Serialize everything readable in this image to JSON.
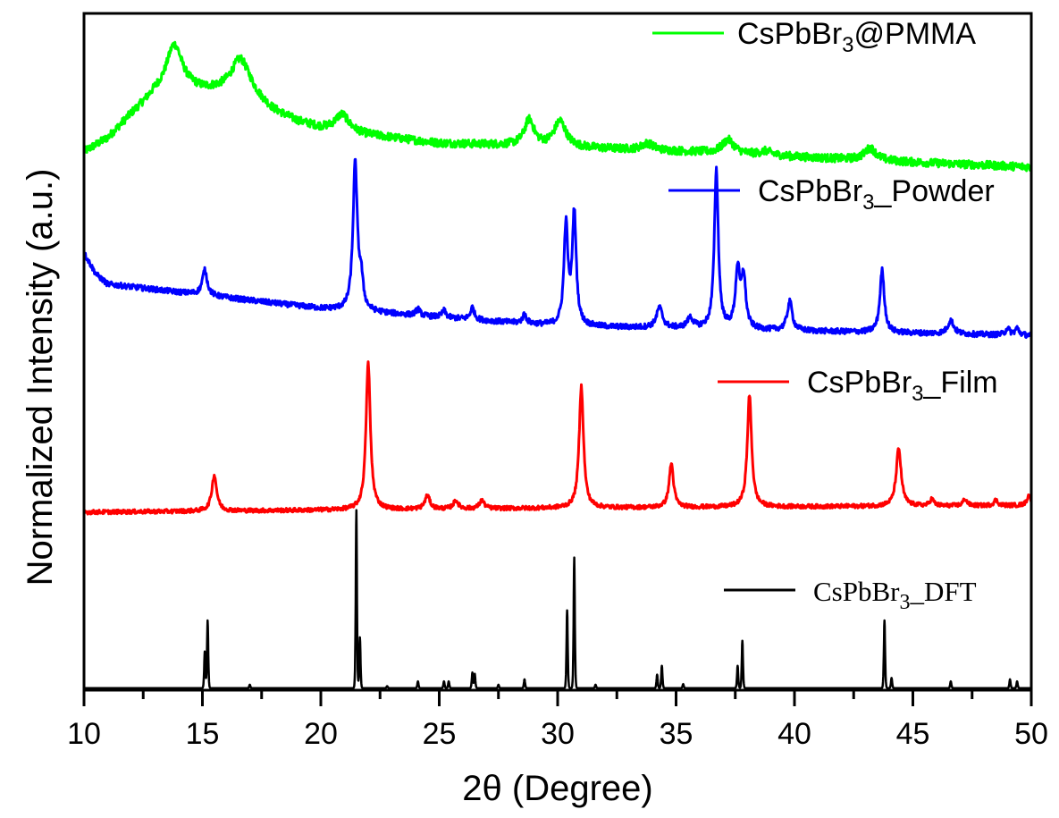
{
  "chart_data": {
    "type": "line",
    "title": "",
    "xlabel": "2θ (Degree)",
    "ylabel": "Normalized Intensity (a.u.)",
    "xlim": [
      10,
      50
    ],
    "ylim": [
      0,
      100
    ],
    "x_ticks": [
      10,
      15,
      20,
      25,
      30,
      35,
      40,
      45,
      50
    ],
    "x_tick_labels": [
      "10",
      "15",
      "20",
      "25",
      "30",
      "35",
      "40",
      "45",
      "50"
    ],
    "y_ticks_shown": false,
    "grid": false,
    "legend_placement": "inline-right",
    "series": [
      {
        "name": "CsPbBr3@PMMA",
        "label_main": "CsPbBr",
        "label_sub": "3",
        "label_tail": "@PMMA",
        "color": "#00ff00",
        "noise": 0.6,
        "baseline": [
          [
            10,
            79.5
          ],
          [
            11,
            81.5
          ],
          [
            12,
            85
          ],
          [
            13,
            88
          ],
          [
            14,
            89
          ],
          [
            15,
            88.5
          ],
          [
            16,
            88.5
          ],
          [
            17,
            88
          ],
          [
            18,
            85.5
          ],
          [
            19,
            84
          ],
          [
            20,
            83
          ],
          [
            22,
            82
          ],
          [
            25,
            80.8
          ],
          [
            28,
            80.5
          ],
          [
            32,
            80
          ],
          [
            36,
            79.5
          ],
          [
            40,
            78.8
          ],
          [
            45,
            78
          ],
          [
            50,
            77.3
          ]
        ],
        "peaks": [
          [
            13.8,
            6.5,
            0.8
          ],
          [
            16.6,
            5,
            0.9
          ],
          [
            20.9,
            2.5,
            0.7
          ],
          [
            28.8,
            3.8,
            0.5
          ],
          [
            30.1,
            3.8,
            0.6
          ],
          [
            33.8,
            1,
            0.6
          ],
          [
            37.2,
            2,
            0.6
          ],
          [
            38.8,
            0.6,
            0.6
          ],
          [
            43.2,
            1.8,
            0.6
          ]
        ]
      },
      {
        "name": "CsPbBr3_Powder",
        "label_main": "CsPbBr",
        "label_sub": "3",
        "label_tail": "_Powder",
        "color": "#0000ff",
        "noise": 0.4,
        "baseline": [
          [
            10,
            64.6
          ],
          [
            10.5,
            61.5
          ],
          [
            11,
            60
          ],
          [
            15,
            58.4
          ],
          [
            20,
            56.4
          ],
          [
            25,
            55.1
          ],
          [
            30,
            53.8
          ],
          [
            40,
            53.1
          ],
          [
            50,
            52.4
          ]
        ],
        "peaks": [
          [
            15.1,
            3.7,
            0.25
          ],
          [
            21.45,
            21.7,
            0.22
          ],
          [
            21.7,
            4,
            0.2
          ],
          [
            24.1,
            1,
            0.2
          ],
          [
            25.2,
            1,
            0.2
          ],
          [
            26.4,
            1.8,
            0.2
          ],
          [
            28.6,
            1.3,
            0.2
          ],
          [
            30.35,
            14.7,
            0.2
          ],
          [
            30.7,
            16.5,
            0.2
          ],
          [
            34.3,
            3,
            0.3
          ],
          [
            35.6,
            1.5,
            0.3
          ],
          [
            36.7,
            23.5,
            0.2
          ],
          [
            37.6,
            8.5,
            0.22
          ],
          [
            37.85,
            7.5,
            0.22
          ],
          [
            39.8,
            4.3,
            0.25
          ],
          [
            43.7,
            9.2,
            0.22
          ],
          [
            46.6,
            2,
            0.3
          ],
          [
            49.0,
            1,
            0.2
          ],
          [
            49.4,
            1,
            0.2
          ]
        ]
      },
      {
        "name": "CsPbBr3_Film",
        "label_main": "CsPbBr",
        "label_sub": "3",
        "label_tail": "_Film",
        "color": "#ff0000",
        "noise": 0.3,
        "baseline": [
          [
            10,
            26.3
          ],
          [
            20,
            26.6
          ],
          [
            30,
            26.9
          ],
          [
            40,
            27.1
          ],
          [
            50,
            27.3
          ]
        ],
        "peaks": [
          [
            15.5,
            5.3,
            0.25
          ],
          [
            22.0,
            21.7,
            0.22
          ],
          [
            24.5,
            2,
            0.25
          ],
          [
            25.7,
            1.2,
            0.25
          ],
          [
            26.8,
            1.2,
            0.25
          ],
          [
            31.0,
            18,
            0.22
          ],
          [
            34.8,
            6.5,
            0.22
          ],
          [
            38.1,
            16.5,
            0.22
          ],
          [
            44.4,
            8.5,
            0.25
          ],
          [
            45.8,
            1,
            0.2
          ],
          [
            47.2,
            1,
            0.2
          ],
          [
            48.5,
            0.8,
            0.2
          ],
          [
            49.9,
            1.5,
            0.2
          ]
        ]
      },
      {
        "name": "CsPbBr3_DFT",
        "label_main": "CsPbBr",
        "label_sub": "3",
        "label_tail": "_DFT",
        "color": "#000000",
        "noise": 0,
        "baseline": [
          [
            10,
            0.3
          ],
          [
            50,
            0.3
          ]
        ],
        "peaks": [
          [
            15.1,
            5.4,
            0.08
          ],
          [
            15.22,
            10,
            0.08
          ],
          [
            17.0,
            0.5,
            0.08
          ],
          [
            21.5,
            26.3,
            0.08
          ],
          [
            21.65,
            7.5,
            0.08
          ],
          [
            22.8,
            0.3,
            0.08
          ],
          [
            24.1,
            1,
            0.08
          ],
          [
            25.2,
            1,
            0.08
          ],
          [
            25.4,
            1,
            0.08
          ],
          [
            26.4,
            2.3,
            0.08
          ],
          [
            26.5,
            2.1,
            0.08
          ],
          [
            27.5,
            0.5,
            0.08
          ],
          [
            28.6,
            1.3,
            0.08
          ],
          [
            30.4,
            11.5,
            0.08
          ],
          [
            30.7,
            19.3,
            0.08
          ],
          [
            31.6,
            0.5,
            0.08
          ],
          [
            34.2,
            2,
            0.08
          ],
          [
            34.4,
            3.3,
            0.08
          ],
          [
            35.3,
            0.6,
            0.08
          ],
          [
            37.6,
            3.3,
            0.08
          ],
          [
            37.8,
            7,
            0.08
          ],
          [
            43.8,
            10,
            0.08
          ],
          [
            44.1,
            1.5,
            0.08
          ],
          [
            46.6,
            1,
            0.08
          ],
          [
            49.1,
            1.3,
            0.08
          ],
          [
            49.4,
            1,
            0.08
          ]
        ]
      }
    ]
  }
}
